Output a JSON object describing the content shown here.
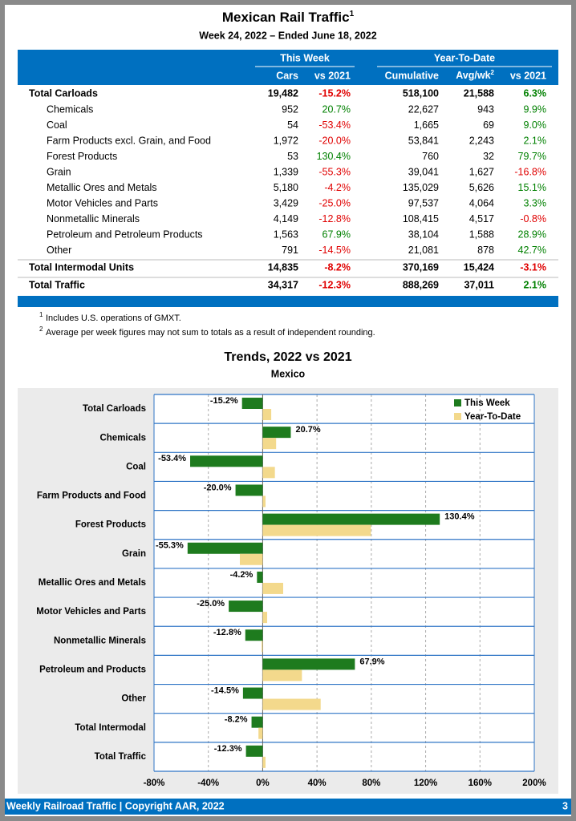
{
  "header": {
    "title": "Mexican Rail Traffic",
    "title_note": "1",
    "subtitle": "Week 24, 2022 – Ended June 18, 2022"
  },
  "table": {
    "groups": [
      "This Week",
      "Year-To-Date"
    ],
    "columns": [
      "Cars",
      "vs 2021",
      "Cumulative",
      "Avg/wk",
      "vs 2021"
    ],
    "avg_note": "2",
    "rows": [
      [
        "Total Carloads",
        "19,482",
        "-15.2%",
        "518,100",
        "21,588",
        "6.3%"
      ],
      [
        "Chemicals",
        "952",
        "20.7%",
        "22,627",
        "943",
        "9.9%"
      ],
      [
        "Coal",
        "54",
        "-53.4%",
        "1,665",
        "69",
        "9.0%"
      ],
      [
        "Farm Products excl. Grain, and Food",
        "1,972",
        "-20.0%",
        "53,841",
        "2,243",
        "2.1%"
      ],
      [
        "Forest Products",
        "53",
        "130.4%",
        "760",
        "32",
        "79.7%"
      ],
      [
        "Grain",
        "1,339",
        "-55.3%",
        "39,041",
        "1,627",
        "-16.8%"
      ],
      [
        "Metallic Ores and Metals",
        "5,180",
        "-4.2%",
        "135,029",
        "5,626",
        "15.1%"
      ],
      [
        "Motor Vehicles and Parts",
        "3,429",
        "-25.0%",
        "97,537",
        "4,064",
        "3.3%"
      ],
      [
        "Nonmetallic Minerals",
        "4,149",
        "-12.8%",
        "108,415",
        "4,517",
        "-0.8%"
      ],
      [
        "Petroleum and Petroleum Products",
        "1,563",
        "67.9%",
        "38,104",
        "1,588",
        "28.9%"
      ],
      [
        "Other",
        "791",
        "-14.5%",
        "21,081",
        "878",
        "42.7%"
      ],
      [
        "Total Intermodal Units",
        "14,835",
        "-8.2%",
        "370,169",
        "15,424",
        "-3.1%"
      ],
      [
        "Total Traffic",
        "34,317",
        "-12.3%",
        "888,269",
        "37,011",
        "2.1%"
      ]
    ]
  },
  "footnotes": [
    {
      "mark": "1",
      "text": "Includes U.S. operations of GMXT."
    },
    {
      "mark": "2",
      "text": "Average per week figures may not sum to totals as a result of independent rounding."
    }
  ],
  "chart_data": {
    "type": "hbar",
    "title": "Trends, 2022 vs 2021",
    "subtitle": "Mexico",
    "categories": [
      "Total Carloads",
      "Chemicals",
      "Coal",
      "Farm Products and Food",
      "Forest Products",
      "Grain",
      "Metallic Ores and Metals",
      "Motor Vehicles and Parts",
      "Nonmetallic Minerals",
      "Petroleum and Products",
      "Other",
      "Total Intermodal",
      "Total Traffic"
    ],
    "series": [
      {
        "name": "This Week",
        "color": "#1e7b1e",
        "values": [
          -15.2,
          20.7,
          -53.4,
          -20.0,
          130.4,
          -55.3,
          -4.2,
          -25.0,
          -12.8,
          67.9,
          -14.5,
          -8.2,
          -12.3
        ],
        "value_labels": [
          "-15.2%",
          "20.7%",
          "-53.4%",
          "-20.0%",
          "130.4%",
          "-55.3%",
          "-4.2%",
          "-25.0%",
          "-12.8%",
          "67.9%",
          "-14.5%",
          "-8.2%",
          "-12.3%"
        ]
      },
      {
        "name": "Year-To-Date",
        "color": "#f3d98c",
        "values": [
          6.3,
          9.9,
          9.0,
          2.1,
          79.7,
          -16.8,
          15.1,
          3.3,
          -0.8,
          28.9,
          42.7,
          -3.1,
          2.1
        ]
      }
    ],
    "xlim": [
      -80,
      200
    ],
    "xticks": [
      {
        "value": -80,
        "label": "-80%"
      },
      {
        "value": -40,
        "label": "-40%"
      },
      {
        "value": 0,
        "label": "0%"
      },
      {
        "value": 40,
        "label": "40%"
      },
      {
        "value": 80,
        "label": "80%"
      },
      {
        "value": 120,
        "label": "120%"
      },
      {
        "value": 160,
        "label": "160%"
      },
      {
        "value": 200,
        "label": "200%"
      }
    ],
    "grid": true,
    "legend": "upper-right"
  },
  "footer": {
    "text": "Weekly Railroad Traffic | Copyright AAR, 2022",
    "page": "3"
  }
}
